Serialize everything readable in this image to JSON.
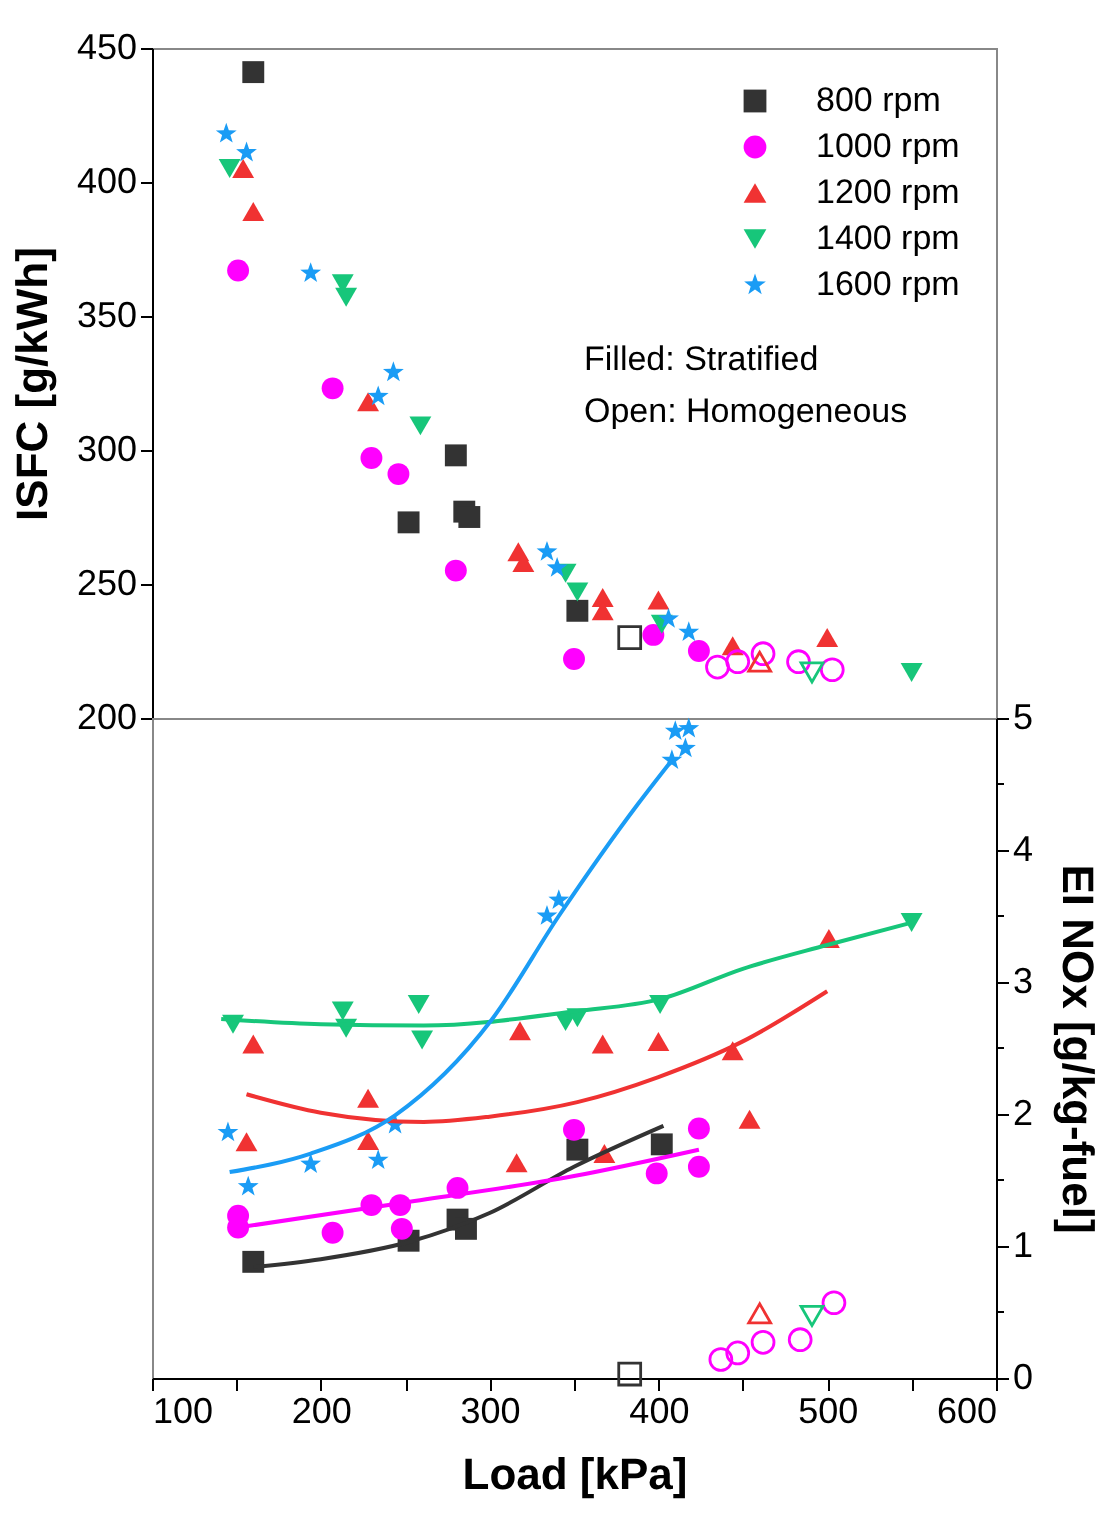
{
  "chart_data": [
    {
      "type": "scatter",
      "ylabel": "ISFC [g/kWh]",
      "xlim": [
        100,
        600
      ],
      "ylim": [
        200,
        450
      ],
      "yticks": [
        200,
        250,
        300,
        350,
        400,
        450
      ],
      "tick_labels": "y",
      "legend": "top right",
      "annotations": [
        "Filled: Stratified",
        "Open: Homogeneous"
      ],
      "series": [
        {
          "name": "800 rpm",
          "color": "#333333",
          "marker": "square",
          "x": [
            160,
            252,
            280,
            285,
            288,
            352
          ],
          "values": [
            441,
            273,
            298,
            277,
            275,
            240
          ]
        },
        {
          "name": "1000 rpm",
          "color": "#ff00ff",
          "marker": "circle",
          "x": [
            151,
            207,
            230,
            246,
            280,
            350,
            397,
            424
          ],
          "values": [
            367,
            323,
            297,
            291,
            255,
            222,
            231,
            225
          ]
        },
        {
          "name": "1200 rpm",
          "color": "#f03232",
          "marker": "triangle",
          "x": [
            154,
            160,
            228,
            317,
            320,
            367,
            367,
            400,
            444,
            500
          ],
          "values": [
            405,
            389,
            318,
            262,
            258,
            245,
            240,
            244,
            227,
            230
          ]
        },
        {
          "name": "1400 rpm",
          "color": "#17c67a",
          "marker": "triangle-down",
          "x": [
            146,
            213,
            215,
            259,
            345,
            352,
            402,
            550
          ],
          "values": [
            405,
            362,
            357,
            309,
            254,
            247,
            235,
            217
          ]
        },
        {
          "name": "1600 rpm",
          "color": "#1a9cf5",
          "marker": "star",
          "x": [
            144,
            156,
            194,
            234,
            243,
            334,
            340,
            406,
            418
          ],
          "values": [
            418,
            411,
            366,
            320,
            329,
            262,
            256,
            237,
            232
          ]
        },
        {
          "color": "#333333",
          "marker": "square-open",
          "x": [
            383
          ],
          "values": [
            230
          ]
        },
        {
          "color": "#ff00ff",
          "marker": "circle-open",
          "x": [
            435,
            447,
            462,
            483,
            503
          ],
          "values": [
            219,
            221,
            224,
            221,
            218
          ]
        },
        {
          "color": "#f03232",
          "marker": "triangle-open",
          "x": [
            460
          ],
          "values": [
            221
          ]
        },
        {
          "color": "#17c67a",
          "marker": "triangle-down-open",
          "x": [
            491
          ],
          "values": [
            217
          ]
        }
      ]
    },
    {
      "type": "scatter",
      "xlabel": "Load [kPa]",
      "y2label": "EI NOx [g/kg-fuel]",
      "xlim": [
        100,
        600
      ],
      "xticks": [
        100,
        {
          "value": 150,
          "label": null
        },
        200,
        {
          "value": 250,
          "label": null
        },
        300,
        {
          "value": 350,
          "label": null
        },
        400,
        {
          "value": 450,
          "label": null
        },
        500,
        {
          "value": 550,
          "label": null
        },
        600
      ],
      "y2lim": [
        0,
        5
      ],
      "y2ticks": [
        0,
        {
          "value": 0.5,
          "label": null
        },
        1,
        {
          "value": 1.5,
          "label": null
        },
        2,
        {
          "value": 2.5,
          "label": null
        },
        3,
        {
          "value": 3.5,
          "label": null
        },
        4,
        {
          "value": 4.5,
          "label": null
        },
        5
      ],
      "series": [
        {
          "color": "#333333",
          "marker": "square",
          "axis": "y2",
          "x": [
            160,
            252,
            281,
            286,
            352,
            402
          ],
          "values": [
            0.88,
            1.04,
            1.2,
            1.13,
            1.73,
            1.77
          ]
        },
        {
          "color": "#ff00ff",
          "marker": "circle",
          "axis": "y2",
          "x": [
            151,
            151,
            207,
            230,
            247,
            248,
            281,
            350,
            399,
            424,
            424
          ],
          "values": [
            1.23,
            1.14,
            1.1,
            1.31,
            1.31,
            1.13,
            1.44,
            1.88,
            1.55,
            1.89,
            1.6
          ]
        },
        {
          "color": "#f03232",
          "marker": "triangle",
          "axis": "y2",
          "x": [
            156,
            160,
            228,
            228,
            316,
            318,
            367,
            368,
            400,
            444,
            454,
            501
          ],
          "values": [
            1.79,
            2.53,
            2.12,
            1.8,
            1.63,
            2.63,
            2.53,
            1.7,
            2.55,
            2.48,
            1.96,
            3.33
          ]
        },
        {
          "color": "#17c67a",
          "marker": "triangle-down",
          "axis": "y2",
          "x": [
            148,
            213,
            215,
            258,
            260,
            345,
            352,
            401,
            550
          ],
          "values": [
            2.68,
            2.78,
            2.65,
            2.83,
            2.56,
            2.7,
            2.73,
            2.83,
            3.45
          ]
        },
        {
          "color": "#1a9cf5",
          "marker": "star",
          "axis": "y2",
          "x": [
            145,
            157,
            194,
            234,
            244,
            334,
            341,
            408,
            410,
            416,
            418
          ],
          "values": [
            1.86,
            1.45,
            1.62,
            1.65,
            1.92,
            3.5,
            3.62,
            4.68,
            4.9,
            4.77,
            4.92
          ]
        },
        {
          "color": "#333333",
          "marker": "square-open",
          "axis": "y2",
          "x": [
            383
          ],
          "values": [
            0.03
          ]
        },
        {
          "color": "#ff00ff",
          "marker": "circle-open",
          "axis": "y2",
          "x": [
            437,
            447,
            462,
            484,
            504
          ],
          "values": [
            0.14,
            0.19,
            0.27,
            0.29,
            0.57
          ]
        },
        {
          "color": "#f03232",
          "marker": "triangle-open",
          "axis": "y2",
          "x": [
            460
          ],
          "values": [
            0.49
          ]
        },
        {
          "color": "#17c67a",
          "marker": "triangle-down-open",
          "axis": "y2",
          "x": [
            491
          ],
          "values": [
            0.47
          ]
        },
        {
          "type": "line",
          "color": "#333333",
          "axis": "y2",
          "x": [
            160,
            200,
            252,
            300,
            350,
            403
          ],
          "values": [
            0.84,
            0.9,
            1.03,
            1.25,
            1.6,
            1.91
          ]
        },
        {
          "type": "line",
          "color": "#ff00ff",
          "axis": "y2",
          "x": [
            151,
            250,
            350,
            424
          ],
          "values": [
            1.14,
            1.33,
            1.53,
            1.73
          ]
        },
        {
          "type": "line",
          "color": "#f03232",
          "axis": "y2",
          "x": [
            156,
            200,
            261,
            300,
            352,
            400,
            450,
            500
          ],
          "values": [
            2.15,
            2.01,
            1.94,
            1.98,
            2.09,
            2.28,
            2.55,
            2.93
          ]
        },
        {
          "type": "line",
          "color": "#17c67a",
          "axis": "y2",
          "x": [
            141,
            200,
            261,
            352,
            401,
            450,
            500,
            550
          ],
          "values": [
            2.72,
            2.68,
            2.67,
            2.78,
            2.87,
            3.1,
            3.28,
            3.45
          ]
        },
        {
          "type": "line",
          "color": "#1a9cf5",
          "axis": "y2",
          "x": [
            146,
            194,
            244,
            301,
            341,
            388,
            408
          ],
          "values": [
            1.56,
            1.7,
            1.99,
            2.71,
            3.5,
            4.35,
            4.68
          ]
        }
      ]
    }
  ]
}
